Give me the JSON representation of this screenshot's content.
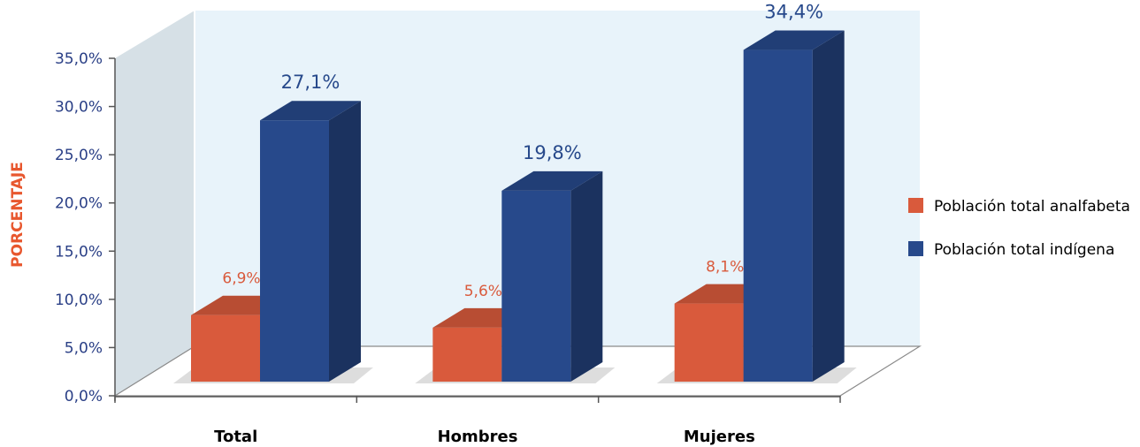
{
  "chart_data": {
    "type": "bar",
    "style": "3d-clustered-column",
    "categories": [
      "Total",
      "Hombres",
      "Mujeres"
    ],
    "series": [
      {
        "name": "Población total analfabeta",
        "values": [
          6.9,
          5.6,
          8.1
        ],
        "labels": [
          "6,9%",
          "5,6%",
          "8,1%"
        ],
        "color": "#d95a3c"
      },
      {
        "name": "Población total indígena",
        "values": [
          27.1,
          19.8,
          34.4
        ],
        "labels": [
          "27,1%",
          "19,8%",
          "34,4%"
        ],
        "color": "#27498b"
      }
    ],
    "ylabel": "PORCENTAJE",
    "ylabel_color": "#e8572e",
    "ylim": [
      0,
      35
    ],
    "yticks": [
      0,
      5,
      10,
      15,
      20,
      25,
      30,
      35
    ],
    "ytick_labels": [
      "0,0%",
      "5,0%",
      "10,0%",
      "15,0%",
      "20,0%",
      "25,0%",
      "30,0%",
      "35,0%"
    ],
    "grid": false,
    "legend_position": "right",
    "background_wall_color": "#e8f3fa",
    "side_wall_color": "#d6e0e6"
  }
}
